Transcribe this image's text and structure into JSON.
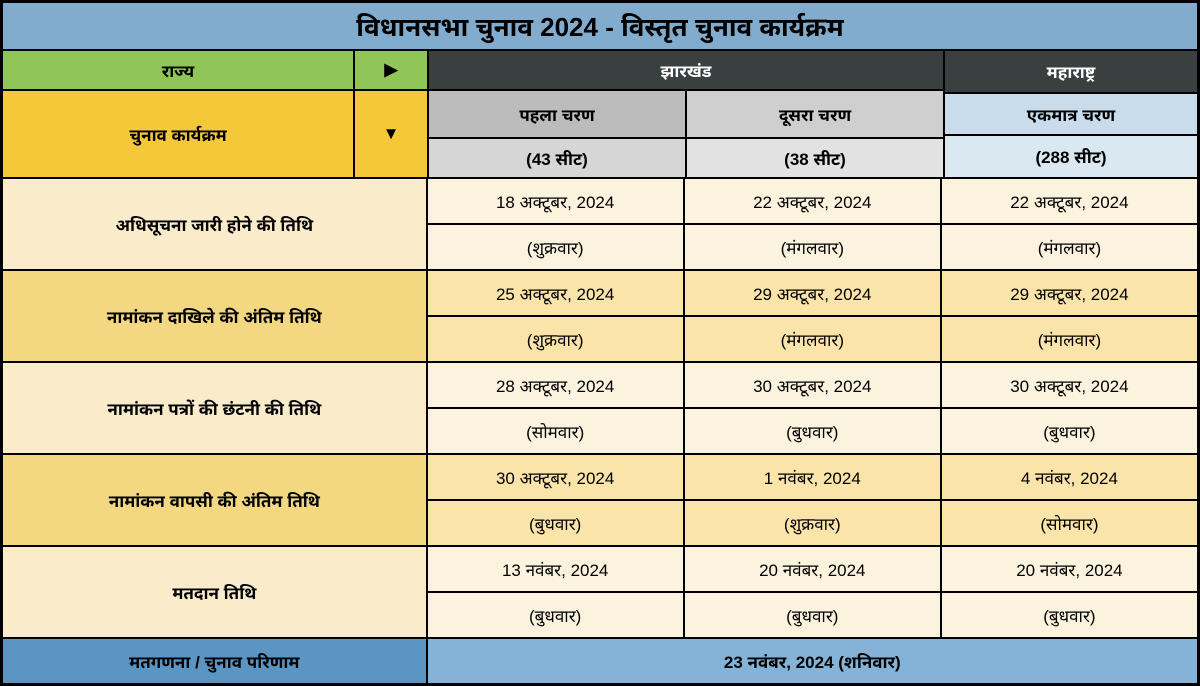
{
  "title": "विधानसभा चुनाव 2024 - विस्तृत चुनाव कार्यक्रम",
  "headers": {
    "state_label": "राज्य",
    "right_arrow": "▶",
    "program_label": "चुनाव कार्यक्रम",
    "down_arrow": "▼",
    "jharkhand": "झारखंड",
    "maharashtra": "महाराष्ट्र",
    "phase1": "पहला चरण",
    "phase2": "दूसरा चरण",
    "single_phase": "एकमात्र चरण",
    "seats1": "(43 सीट)",
    "seats2": "(38 सीट)",
    "seats3": "(288 सीट)"
  },
  "rows": [
    {
      "label": "अधिसूचना जारी होने की तिथि",
      "c1_date": "18 अक्टूबर, 2024",
      "c1_day": "(शुक्रवार)",
      "c2_date": "22 अक्टूबर, 2024",
      "c2_day": "(मंगलवार)",
      "c3_date": "22 अक्टूबर, 2024",
      "c3_day": "(मंगलवार)",
      "style_label": "r-cream-label",
      "style_cell": "r-cream-cell"
    },
    {
      "label": "नामांकन दाखिले की अंतिम तिथि",
      "c1_date": "25 अक्टूबर, 2024",
      "c1_day": "(शुक्रवार)",
      "c2_date": "29 अक्टूबर, 2024",
      "c2_day": "(मंगलवार)",
      "c3_date": "29 अक्टूबर, 2024",
      "c3_day": "(मंगलवार)",
      "style_label": "r-ochre-label",
      "style_cell": "r-ochre-cell"
    },
    {
      "label": "नामांकन पत्रों की छंटनी की तिथि",
      "c1_date": "28 अक्टूबर, 2024",
      "c1_day": "(सोमवार)",
      "c2_date": "30 अक्टूबर, 2024",
      "c2_day": "(बुधवार)",
      "c3_date": "30 अक्टूबर, 2024",
      "c3_day": "(बुधवार)",
      "style_label": "r-cream-label",
      "style_cell": "r-cream-cell"
    },
    {
      "label": "नामांकन वापसी की अंतिम तिथि",
      "c1_date": "30 अक्टूबर, 2024",
      "c1_day": "(बुधवार)",
      "c2_date": "1 नवंबर, 2024",
      "c2_day": "(शुक्रवार)",
      "c3_date": "4 नवंबर, 2024",
      "c3_day": "(सोमवार)",
      "style_label": "r-ochre-label",
      "style_cell": "r-ochre-cell"
    },
    {
      "label": "मतदान तिथि",
      "c1_date": "13 नवंबर, 2024",
      "c1_day": "(बुधवार)",
      "c2_date": "20 नवंबर, 2024",
      "c2_day": "(बुधवार)",
      "c3_date": "20 नवंबर, 2024",
      "c3_day": "(बुधवार)",
      "style_label": "r-cream-label",
      "style_cell": "r-cream-cell"
    }
  ],
  "footer": {
    "left": "मतगणना / चुनाव परिणाम",
    "right": "23 नवंबर, 2024 (शनिवार)"
  },
  "colors": {
    "title_bg": "#81acce",
    "green_bg": "#8fc657",
    "yellow_bg": "#f5c83a",
    "dark_bg": "#3a3f3f",
    "border": "#000000"
  }
}
